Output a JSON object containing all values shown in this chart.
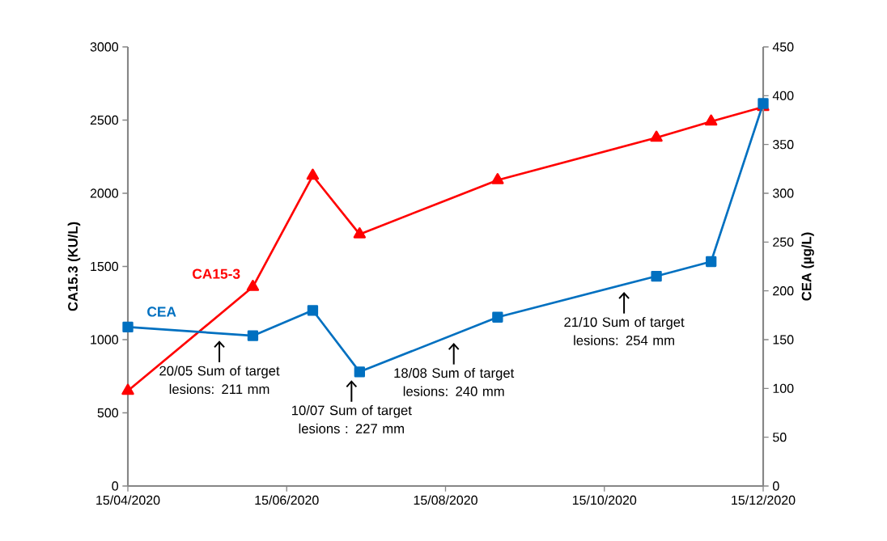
{
  "chart_data": {
    "type": "line",
    "x": [
      "2020-04-15",
      "2020-06-02",
      "2020-06-25",
      "2020-07-13",
      "2020-09-04",
      "2020-11-04",
      "2020-11-25",
      "2020-12-15"
    ],
    "series": [
      {
        "name": "CA15-3",
        "color": "#ff0000",
        "marker": "triangle",
        "values": [
          650,
          1360,
          2120,
          1720,
          2090,
          2380,
          2490,
          2590
        ]
      },
      {
        "name": "CEA",
        "color": "#0070c0",
        "marker": "square",
        "axis": "y2",
        "values": [
          163,
          154,
          180,
          117,
          173,
          215,
          230,
          392
        ]
      }
    ],
    "xlim": [
      "2020-04-15",
      "2020-12-15"
    ],
    "xticks": [
      {
        "value": "2020-04-15",
        "label": "15/04/2020"
      },
      {
        "value": "2020-06-15",
        "label": "15/06/2020"
      },
      {
        "value": "2020-08-15",
        "label": "15/08/2020"
      },
      {
        "value": "2020-10-15",
        "label": "15/10/2020"
      },
      {
        "value": "2020-12-15",
        "label": "15/12/2020"
      }
    ],
    "ylim": [
      0,
      3000
    ],
    "yticks": [
      0,
      500,
      1000,
      1500,
      2000,
      2500,
      3000
    ],
    "y2lim": [
      0,
      450
    ],
    "y2ticks": [
      0,
      50,
      100,
      150,
      200,
      250,
      300,
      350,
      400,
      450
    ],
    "ylabel": "CA15.3 (KU/L)",
    "y2label": "CEA (µg/L)",
    "grid": false,
    "annotations": [
      "20/05 Sum of target lesions: 211 mm",
      "10/07 Sum of target lesions : 227 mm",
      "18/08 Sum of target lesions: 240 mm",
      "21/10 Sum of target lesions: 254 mm"
    ]
  }
}
